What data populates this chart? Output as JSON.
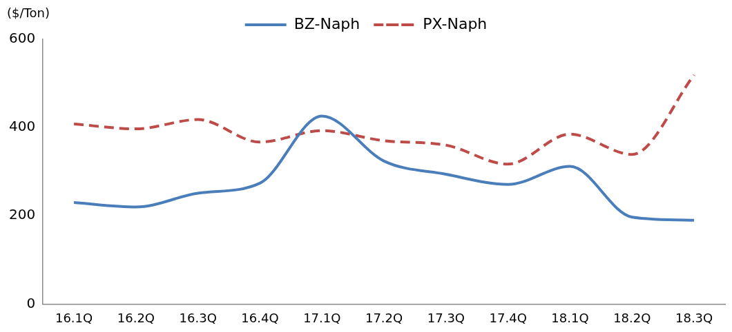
{
  "chart_data": {
    "type": "line",
    "ylabel": "($/Ton)",
    "categories": [
      "16.1Q",
      "16.2Q",
      "16.3Q",
      "16.4Q",
      "17.1Q",
      "17.2Q",
      "17.3Q",
      "17.4Q",
      "18.1Q",
      "18.2Q",
      "18.3Q"
    ],
    "series": [
      {
        "name": "BZ-Naph",
        "color": "#4a7ebb",
        "line_style": "solid",
        "values": [
          230,
          220,
          251,
          274,
          426,
          324,
          294,
          271,
          312,
          197,
          190
        ]
      },
      {
        "name": "PX-Naph",
        "color": "#be4b48",
        "line_style": "dashed",
        "values": [
          408,
          397,
          418,
          367,
          393,
          370,
          360,
          317,
          385,
          339,
          519
        ]
      }
    ],
    "ylim": [
      0,
      600
    ],
    "yticks": [
      0,
      200,
      400,
      600
    ],
    "grid": false,
    "legend": "top",
    "marker": "none"
  }
}
